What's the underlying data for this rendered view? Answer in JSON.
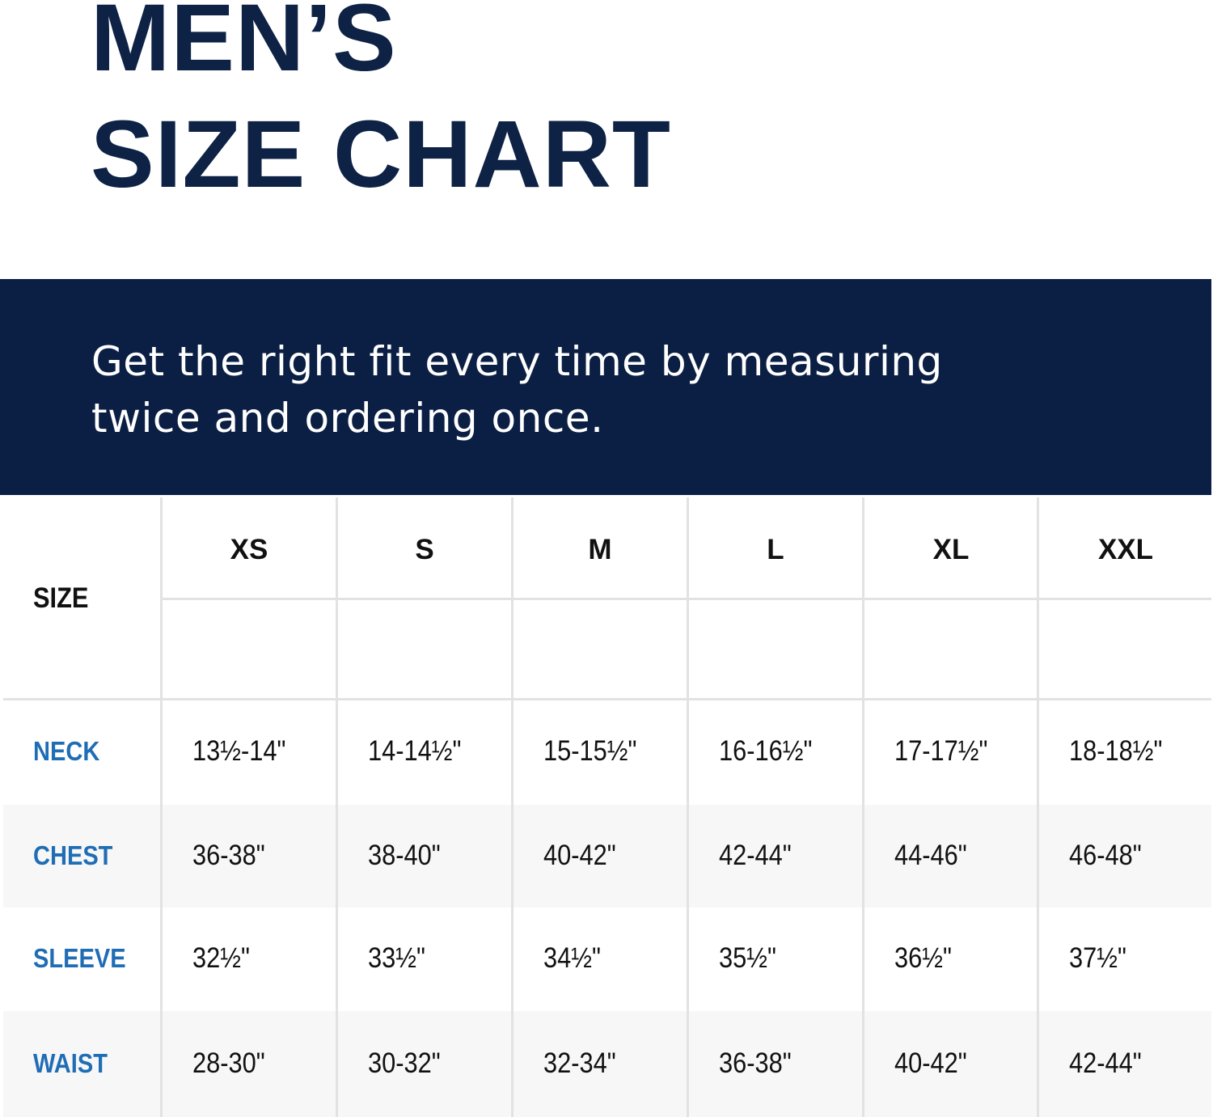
{
  "title_line1": "MEN’S",
  "title_line2": "SIZE CHART",
  "subtitle": "Get the right fit every time by measuring twice and ordering once.",
  "colors": {
    "navy": "#0b1f44",
    "row_label_blue": "#1f6db5",
    "alt_row": "#f7f7f7"
  },
  "table": {
    "size_label": "SIZE",
    "sizes": [
      "XS",
      "S",
      "M",
      "L",
      "XL",
      "XXL"
    ],
    "rows": [
      {
        "label": "NECK",
        "values": [
          "13½-14\"",
          "14-14½\"",
          "15-15½\"",
          "16-16½\"",
          "17-17½\"",
          "18-18½\""
        ]
      },
      {
        "label": "CHEST",
        "values": [
          "36-38\"",
          "38-40\"",
          "40-42\"",
          "42-44\"",
          "44-46\"",
          "46-48\""
        ]
      },
      {
        "label": "SLEEVE",
        "values": [
          "32½\"",
          "33½\"",
          "34½\"",
          "35½\"",
          "36½\"",
          "37½\""
        ]
      },
      {
        "label": "WAIST",
        "values": [
          "28-30\"",
          "30-32\"",
          "32-34\"",
          "36-38\"",
          "40-42\"",
          "42-44\""
        ]
      }
    ]
  }
}
